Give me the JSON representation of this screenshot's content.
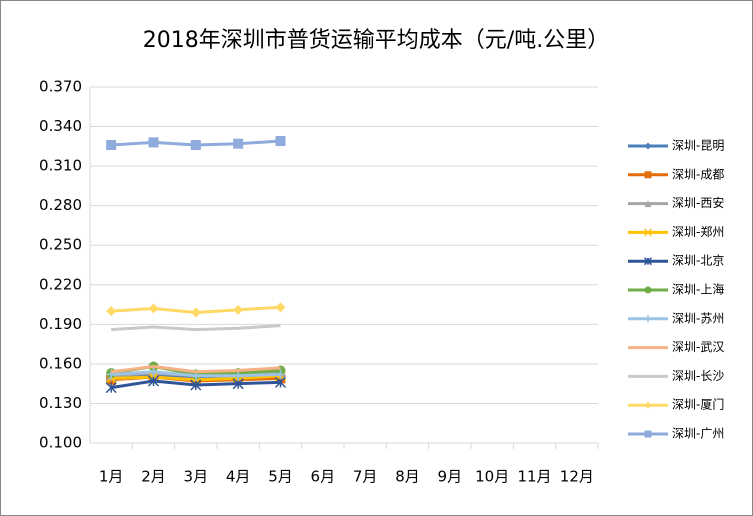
{
  "chart_data": {
    "type": "line",
    "title": "2018年深圳市普货运输平均成本（元/吨.公里）",
    "categories": [
      "1月",
      "2月",
      "3月",
      "4月",
      "5月",
      "6月",
      "7月",
      "8月",
      "9月",
      "10月",
      "11月",
      "12月"
    ],
    "ylim": [
      0.1,
      0.37
    ],
    "yticks": [
      {
        "value": 0.1,
        "label": "0.100"
      },
      {
        "value": 0.13,
        "label": "0.130"
      },
      {
        "value": 0.16,
        "label": "0.160"
      },
      {
        "value": 0.19,
        "label": "0.190"
      },
      {
        "value": 0.22,
        "label": "0.220"
      },
      {
        "value": 0.25,
        "label": "0.250"
      },
      {
        "value": 0.28,
        "label": "0.280"
      },
      {
        "value": 0.31,
        "label": "0.310"
      },
      {
        "value": 0.34,
        "label": "0.340"
      },
      {
        "value": 0.37,
        "label": "0.370"
      }
    ],
    "grid": true,
    "legend": "right",
    "series": [
      {
        "name": "深圳-昆明",
        "color": "#4a7ebb",
        "marker": "diamond",
        "values": [
          0.151,
          0.152,
          0.15,
          0.151,
          0.152,
          null,
          null,
          null,
          null,
          null,
          null,
          null
        ]
      },
      {
        "name": "深圳-成都",
        "color": "#e46c0a",
        "marker": "square",
        "values": [
          0.148,
          0.15,
          0.147,
          0.148,
          0.149,
          null,
          null,
          null,
          null,
          null,
          null,
          null
        ]
      },
      {
        "name": "深圳-西安",
        "color": "#a5a5a5",
        "marker": "triangle",
        "values": [
          0.151,
          0.153,
          0.151,
          0.152,
          0.153,
          null,
          null,
          null,
          null,
          null,
          null,
          null
        ]
      },
      {
        "name": "深圳-郑州",
        "color": "#ffc000",
        "marker": "x",
        "values": [
          0.149,
          0.15,
          0.148,
          0.149,
          0.151,
          null,
          null,
          null,
          null,
          null,
          null,
          null
        ]
      },
      {
        "name": "深圳-北京",
        "color": "#2f5597",
        "marker": "star",
        "values": [
          0.142,
          0.147,
          0.144,
          0.145,
          0.146,
          null,
          null,
          null,
          null,
          null,
          null,
          null
        ]
      },
      {
        "name": "深圳-上海",
        "color": "#70ad47",
        "marker": "circle",
        "values": [
          0.153,
          0.158,
          0.152,
          0.153,
          0.155,
          null,
          null,
          null,
          null,
          null,
          null,
          null
        ]
      },
      {
        "name": "深圳-苏州",
        "color": "#9dc3e6",
        "marker": "plus",
        "values": [
          0.152,
          0.154,
          0.151,
          0.151,
          0.152,
          null,
          null,
          null,
          null,
          null,
          null,
          null
        ]
      },
      {
        "name": "深圳-武汉",
        "color": "#f4b183",
        "marker": "none",
        "values": [
          0.154,
          0.158,
          0.154,
          0.155,
          0.157,
          null,
          null,
          null,
          null,
          null,
          null,
          null
        ]
      },
      {
        "name": "深圳-长沙",
        "color": "#c9c9c9",
        "marker": "none",
        "values": [
          0.186,
          0.188,
          0.186,
          0.187,
          0.189,
          null,
          null,
          null,
          null,
          null,
          null,
          null
        ]
      },
      {
        "name": "深圳-厦门",
        "color": "#ffd966",
        "marker": "diamond",
        "values": [
          0.2,
          0.202,
          0.199,
          0.201,
          0.203,
          null,
          null,
          null,
          null,
          null,
          null,
          null
        ]
      },
      {
        "name": "深圳-广州",
        "color": "#8faadc",
        "marker": "square",
        "values": [
          0.326,
          0.328,
          0.326,
          0.327,
          0.329,
          null,
          null,
          null,
          null,
          null,
          null,
          null
        ]
      }
    ]
  }
}
